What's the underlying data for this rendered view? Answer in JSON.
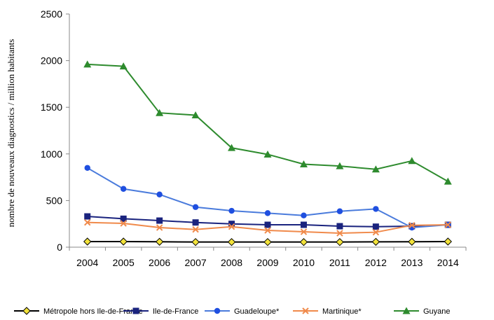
{
  "chart_data": {
    "type": "line",
    "title": "",
    "xlabel": "",
    "ylabel": "nombre de nouveaux diagnostics / million habitants",
    "x": [
      "2004",
      "2005",
      "2006",
      "2007",
      "2008",
      "2009",
      "2010",
      "2011",
      "2012",
      "2013",
      "2014"
    ],
    "ylim": [
      0,
      2500
    ],
    "yticks": [
      0,
      500,
      1000,
      1500,
      2000,
      2500
    ],
    "grid": false,
    "legend_position": "bottom",
    "series": [
      {
        "name": "Métropole hors Ile-de-France",
        "color": "#000000",
        "marker": "diamond",
        "marker_fill": "#f2e23a",
        "values": [
          60,
          60,
          58,
          55,
          55,
          55,
          55,
          55,
          57,
          58,
          60
        ]
      },
      {
        "name": "Ile-de-France",
        "color": "#1a237e",
        "marker": "square",
        "marker_fill": "#1a237e",
        "values": [
          330,
          305,
          285,
          265,
          250,
          240,
          240,
          225,
          220,
          225,
          240
        ]
      },
      {
        "name": "Guadeloupe*",
        "color": "#4a7bdc",
        "marker": "circle",
        "marker_fill": "#1f4fe0",
        "values": [
          850,
          625,
          565,
          430,
          390,
          365,
          340,
          385,
          410,
          210,
          240
        ]
      },
      {
        "name": "Martinique*",
        "color": "#f08a4b",
        "marker": "x",
        "marker_fill": "#f08a4b",
        "values": [
          265,
          255,
          210,
          190,
          220,
          180,
          165,
          150,
          160,
          235,
          240
        ]
      },
      {
        "name": "Guyane",
        "color": "#2e8b2e",
        "marker": "triangle",
        "marker_fill": "#2e8b2e",
        "values": [
          1960,
          1940,
          1440,
          1415,
          1065,
          995,
          890,
          870,
          835,
          925,
          705
        ]
      }
    ]
  }
}
